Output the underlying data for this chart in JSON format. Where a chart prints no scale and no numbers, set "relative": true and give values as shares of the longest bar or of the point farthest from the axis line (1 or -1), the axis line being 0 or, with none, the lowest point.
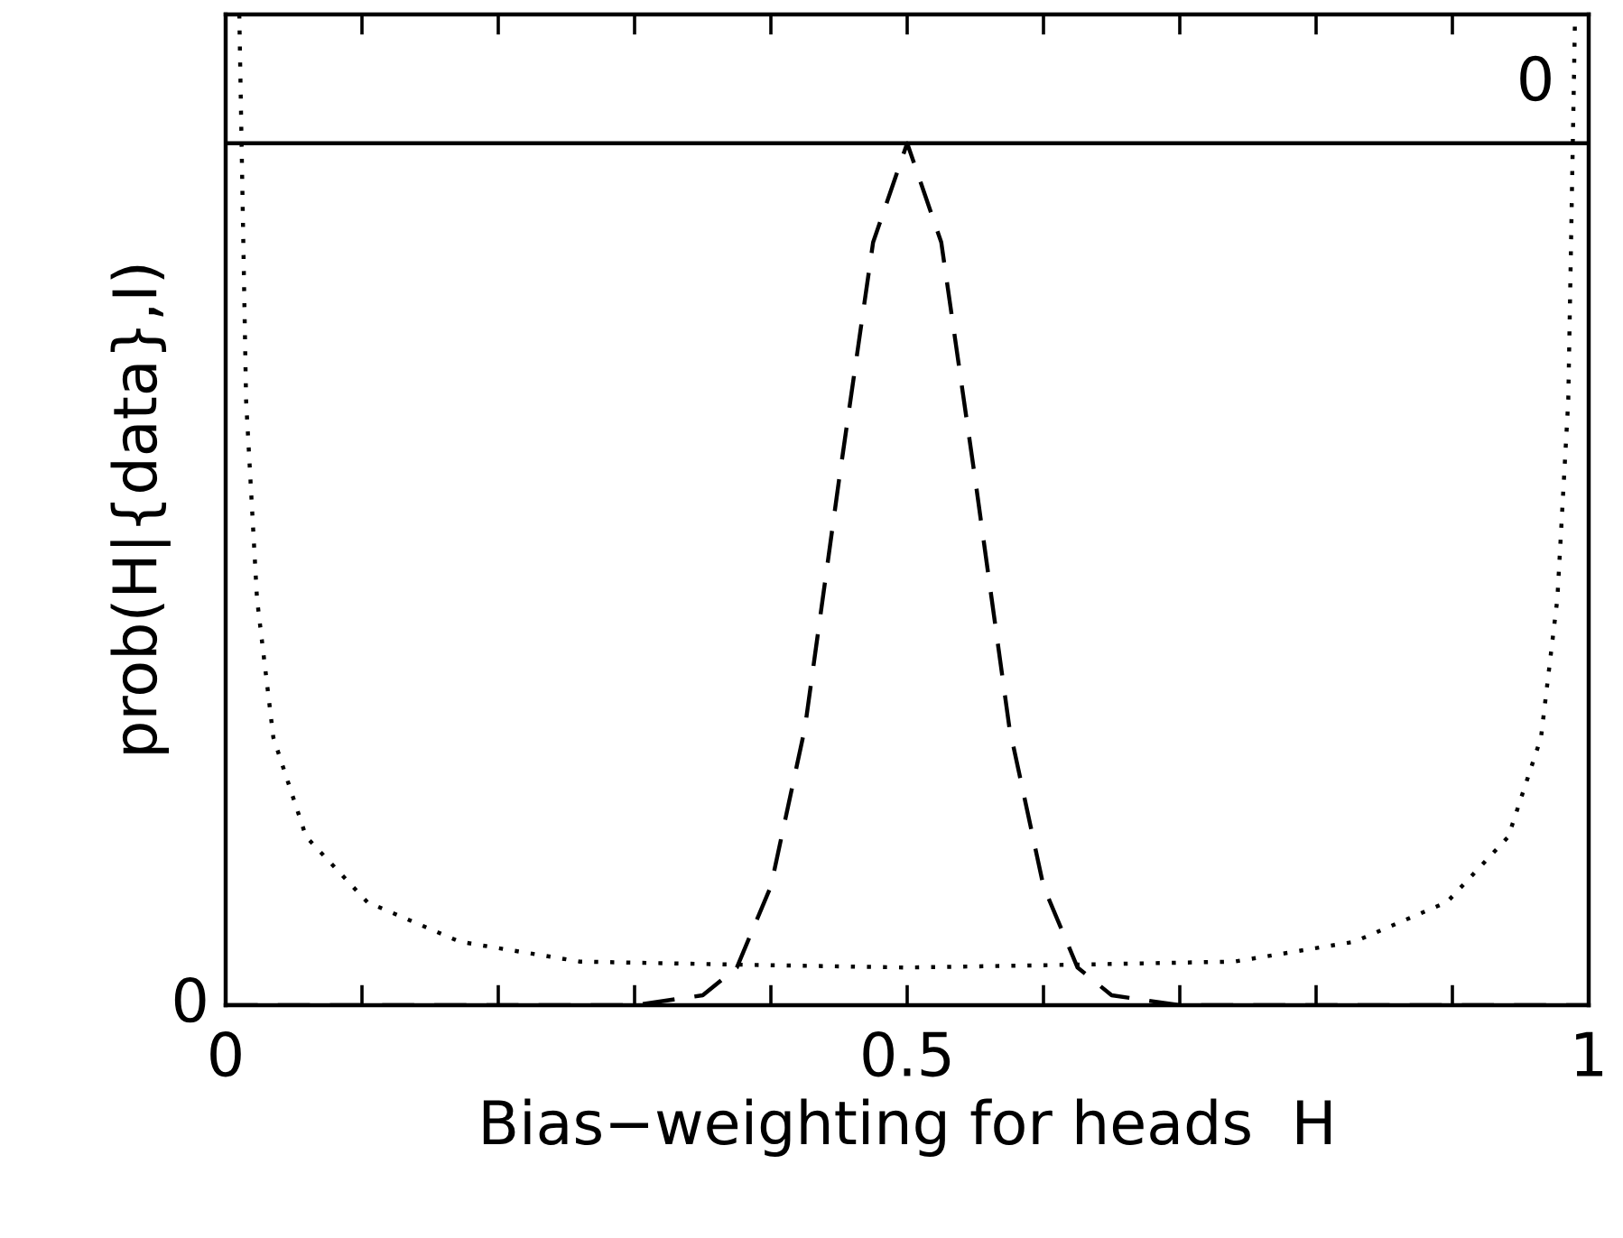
{
  "chart_data": {
    "type": "line",
    "relative": true,
    "xlabel": "Bias−weighting for heads  H",
    "ylabel": "prob(H|{data},I)",
    "annotations": [
      "0",
      "0"
    ],
    "xlim": [
      0,
      1
    ],
    "xticks": [
      0,
      {
        "value": 0.1,
        "label": null
      },
      {
        "value": 0.2,
        "label": null
      },
      {
        "value": 0.3,
        "label": null
      },
      {
        "value": 0.4,
        "label": null
      },
      0.5,
      {
        "value": 0.6,
        "label": null
      },
      {
        "value": 0.7,
        "label": null
      },
      {
        "value": 0.8,
        "label": null
      },
      {
        "value": 0.9,
        "label": null
      },
      1
    ],
    "grid": false,
    "legend": false,
    "series": [
      {
        "color": "#000000",
        "line_style": "solid",
        "x": [
          0,
          1
        ],
        "values": [
          0.87,
          0.87
        ]
      },
      {
        "color": "#000000",
        "line_style": "dashed",
        "x": [
          0,
          0.3,
          0.35,
          0.375,
          0.4,
          0.425,
          0.45,
          0.475,
          0.5,
          0.525,
          0.55,
          0.575,
          0.6,
          0.625,
          0.65,
          0.7,
          1
        ],
        "values": [
          0,
          0,
          0.01,
          0.038,
          0.12,
          0.28,
          0.53,
          0.77,
          0.87,
          0.77,
          0.53,
          0.28,
          0.12,
          0.038,
          0.01,
          0,
          0
        ]
      },
      {
        "color": "#000000",
        "line_style": "dotted",
        "x": [
          0.01,
          0.015,
          0.023,
          0.035,
          0.059,
          0.104,
          0.172,
          0.26,
          0.373,
          0.5,
          0.627,
          0.74,
          0.828,
          0.896,
          0.941,
          0.965,
          0.977,
          0.985,
          0.99
        ],
        "values": [
          1,
          0.61,
          0.41,
          0.27,
          0.17,
          0.104,
          0.064,
          0.044,
          0.041,
          0.038,
          0.041,
          0.044,
          0.064,
          0.104,
          0.17,
          0.27,
          0.41,
          0.61,
          1
        ]
      }
    ]
  }
}
